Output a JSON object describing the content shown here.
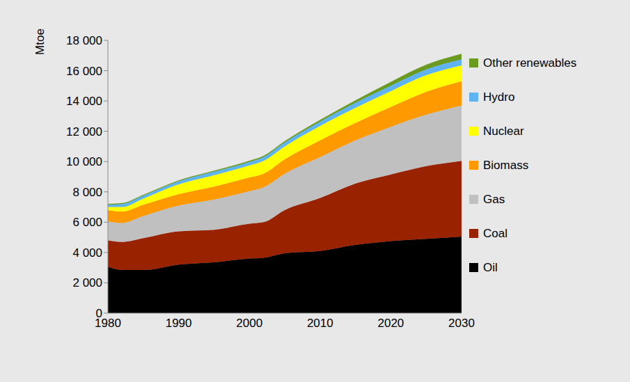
{
  "chart_data": {
    "type": "area",
    "stacked": true,
    "y_label": "Mtoe",
    "legend": "right",
    "x": [
      1980,
      1982,
      1985,
      1990,
      1995,
      2000,
      2002,
      2005,
      2010,
      2015,
      2020,
      2025,
      2030
    ],
    "xlim": [
      1980,
      2030
    ],
    "xticks": [
      1980,
      1990,
      2000,
      2010,
      2020,
      2030
    ],
    "ylim": [
      0,
      18000
    ],
    "yticks": [
      0,
      {
        "value": 2000,
        "label": "2 000"
      },
      {
        "value": 4000,
        "label": "4 000"
      },
      {
        "value": 6000,
        "label": "6 000"
      },
      {
        "value": 8000,
        "label": "8 000"
      },
      {
        "value": 10000,
        "label": "10 000"
      },
      {
        "value": 12000,
        "label": "12 000"
      },
      {
        "value": 14000,
        "label": "14 000"
      },
      {
        "value": 16000,
        "label": "16 000"
      },
      {
        "value": 18000,
        "label": "18 000"
      }
    ],
    "series": [
      {
        "name": "Oil",
        "color": "#000000",
        "values": [
          3050,
          2850,
          2850,
          3200,
          3350,
          3600,
          3650,
          3950,
          4100,
          4500,
          4750,
          4900,
          5050
        ]
      },
      {
        "name": "Coal",
        "color": "#992200",
        "values": [
          1750,
          1850,
          2100,
          2200,
          2150,
          2300,
          2350,
          2850,
          3500,
          4050,
          4400,
          4800,
          5000
        ]
      },
      {
        "name": "Gas",
        "color": "#c0c0c0",
        "values": [
          1250,
          1250,
          1450,
          1700,
          2000,
          2150,
          2300,
          2400,
          2700,
          2850,
          3150,
          3400,
          3650
        ]
      },
      {
        "name": "Biomass",
        "color": "#ff9900",
        "values": [
          750,
          750,
          750,
          750,
          850,
          900,
          900,
          950,
          1100,
          1150,
          1300,
          1500,
          1600
        ]
      },
      {
        "name": "Nuclear",
        "color": "#ffff00",
        "values": [
          200,
          300,
          400,
          650,
          750,
          800,
          850,
          850,
          950,
          1000,
          1050,
          1100,
          1050
        ]
      },
      {
        "name": "Hydro",
        "color": "#5eb3f0",
        "values": [
          150,
          200,
          200,
          200,
          230,
          230,
          250,
          260,
          290,
          330,
          350,
          380,
          400
        ]
      },
      {
        "name": "Other renewables",
        "color": "#6a9a1f",
        "values": [
          50,
          50,
          50,
          50,
          60,
          70,
          70,
          80,
          100,
          150,
          250,
          300,
          350
        ]
      }
    ]
  }
}
